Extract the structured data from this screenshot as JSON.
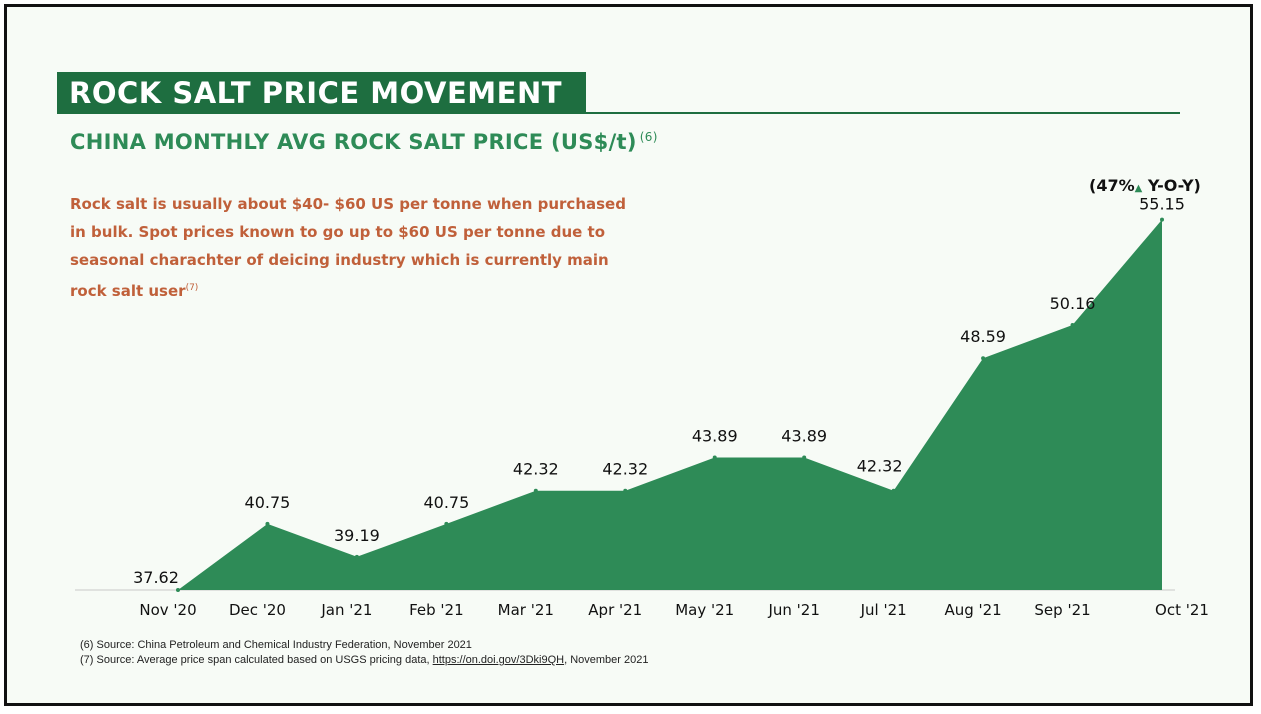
{
  "header": {
    "title": "ROCK SALT PRICE MOVEMENT",
    "subtitle": "CHINA MONTHLY AVG ROCK SALT PRICE (US$/t)",
    "subtitle_ref": "(6)"
  },
  "note": {
    "text": "Rock salt is usually about $40- $60 US per tonne when purchased in bulk. Spot prices known to go up to $60 US per tonne due to seasonal charachter of deicing industry which is currently main rock salt user",
    "ref": "(7)"
  },
  "yoy": {
    "prefix": "(47%",
    "arrow": "▲",
    "suffix": " Y-O-Y)"
  },
  "chart_data": {
    "type": "area",
    "title": "CHINA MONTHLY AVG ROCK SALT PRICE (US$/t)",
    "categories": [
      "Nov '20",
      "Dec '20",
      "Jan '21",
      "Feb '21",
      "Mar '21",
      "Apr '21",
      "May '21",
      "Jun '21",
      "Jul '21",
      "Aug '21",
      "Sep '21",
      "Oct '21"
    ],
    "values": [
      37.62,
      40.75,
      39.19,
      40.75,
      42.32,
      42.32,
      43.89,
      43.89,
      42.32,
      48.59,
      50.16,
      55.15
    ],
    "value_labels": [
      "37.62",
      "40.75",
      "39.19",
      "40.75",
      "42.32",
      "42.32",
      "43.89",
      "43.89",
      "42.32",
      "48.59",
      "50.16",
      "55.15"
    ],
    "xlabel": "",
    "ylabel": "US$/t",
    "ylim": [
      37.62,
      55.15
    ],
    "grid": false,
    "color": "#2e8b57"
  },
  "footnotes": {
    "line1": "(6) Source: China Petroleum and Chemical Industry Federation, November 2021",
    "line2_prefix": "(7) Source: Average price span calculated based on USGS pricing data, ",
    "line2_link": "https://on.doi.gov/3Dki9QH",
    "line2_suffix": ", November 2021"
  },
  "colors": {
    "brand_green": "#1e6e40",
    "area_green": "#2e8b57",
    "note_orange": "#c0603a"
  }
}
